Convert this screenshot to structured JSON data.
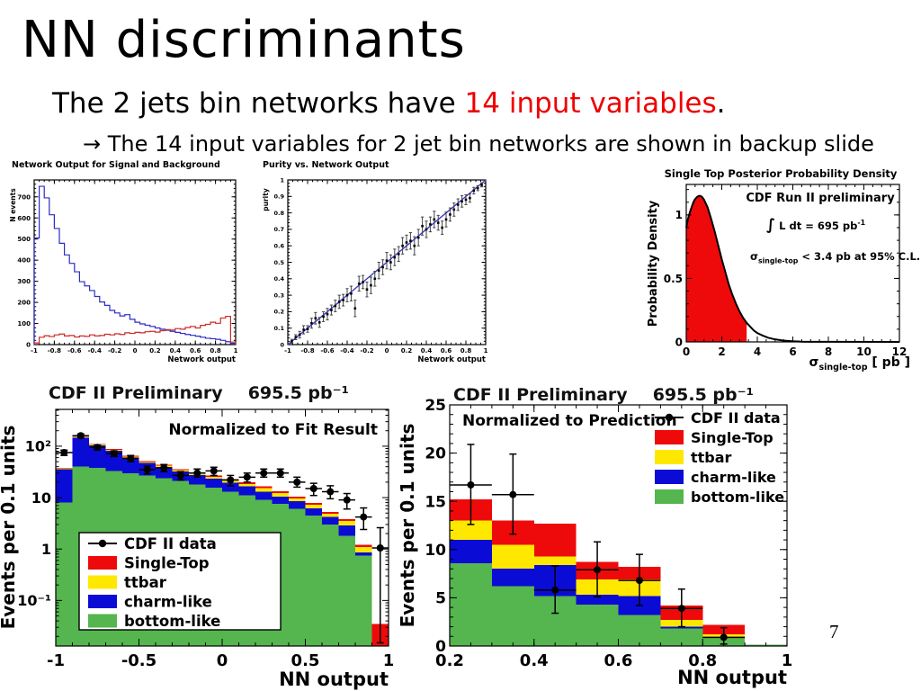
{
  "slide": {
    "title": "NN discriminants",
    "intro": {
      "prefix": "The 2 jets bin networks have ",
      "highlight": "14 input variables",
      "suffix": "."
    },
    "subline": "→ The 14 input variables for 2 jet bin networks are shown in backup slide",
    "page_number": "7"
  },
  "colors": {
    "signal_red": "#cc2a2a",
    "background_blue": "#2c2cc8",
    "single_top_red": "#ee0a0a",
    "ttbar_yellow": "#ffe800",
    "charm_blue": "#0b0bd6",
    "bottom_green": "#55b54f",
    "diagonal_blue": "#3a3ad0",
    "highlight_red": "#ee0000"
  },
  "chart_data": [
    {
      "type": "line",
      "title": "Network Output for Signal and Background",
      "xlabel": "Network output",
      "ylabel": "N events",
      "xlim": [
        -1,
        1
      ],
      "ylim": [
        0,
        780
      ],
      "xticks": [
        -1,
        -0.8,
        -0.6,
        -0.4,
        -0.2,
        0,
        0.2,
        0.4,
        0.6,
        0.8,
        1
      ],
      "xtick_labels": [
        "-1",
        "-0.8",
        "-0.6",
        "-0.4",
        "-0.2",
        "0",
        "0.2",
        "0.4",
        "0.6",
        "0.8",
        "1"
      ],
      "yticks": [
        0,
        100,
        200,
        300,
        400,
        500,
        600,
        700
      ],
      "ytick_labels": [
        "0",
        "100",
        "200",
        "300",
        "400",
        "500",
        "600",
        "700"
      ],
      "x_start": -1,
      "bin_width": 0.05,
      "series": [
        {
          "name": "background",
          "color": "#2c2cc8",
          "values": [
            505,
            750,
            695,
            615,
            550,
            480,
            425,
            385,
            345,
            298,
            278,
            256,
            228,
            202,
            186,
            162,
            150,
            136,
            142,
            120,
            106,
            98,
            92,
            86,
            79,
            73,
            68,
            63,
            58,
            53,
            48,
            44,
            40,
            35,
            30,
            28,
            25,
            20,
            14,
            6
          ]
        },
        {
          "name": "signal",
          "color": "#cc2a2a",
          "values": [
            8,
            35,
            42,
            38,
            46,
            50,
            41,
            43,
            36,
            41,
            39,
            46,
            41,
            43,
            49,
            46,
            51,
            48,
            56,
            53,
            58,
            56,
            61,
            63,
            59,
            66,
            71,
            69,
            76,
            73,
            81,
            86,
            79,
            91,
            96,
            106,
            101,
            126,
            134,
            12
          ]
        }
      ]
    },
    {
      "type": "scatter",
      "title": "Purity vs. Network Output",
      "xlabel": "Network output",
      "ylabel": "purity",
      "xlim": [
        -1,
        1
      ],
      "ylim": [
        0,
        1
      ],
      "xticks": [
        -1,
        -0.8,
        -0.6,
        -0.4,
        -0.2,
        0,
        0.2,
        0.4,
        0.6,
        0.8,
        1
      ],
      "xtick_labels": [
        "-1",
        "-0.8",
        "-0.6",
        "-0.4",
        "-0.2",
        "0",
        "0.2",
        "0.4",
        "0.6",
        "0.8",
        "1"
      ],
      "yticks": [
        0,
        0.1,
        0.2,
        0.3,
        0.4,
        0.5,
        0.6,
        0.7,
        0.8,
        0.9,
        1
      ],
      "ytick_labels": [
        "0",
        "0.1",
        "0.2",
        "0.3",
        "0.4",
        "0.5",
        "0.6",
        "0.7",
        "0.8",
        "0.9",
        "1"
      ],
      "diagonal": {
        "from": [
          -1,
          0
        ],
        "to": [
          1,
          1
        ],
        "color": "#3a3ad0"
      },
      "points": [
        [
          -0.96,
          0.02,
          0.012
        ],
        [
          -0.92,
          0.045,
          0.015
        ],
        [
          -0.88,
          0.06,
          0.02
        ],
        [
          -0.84,
          0.09,
          0.025
        ],
        [
          -0.8,
          0.095,
          0.02
        ],
        [
          -0.76,
          0.13,
          0.03
        ],
        [
          -0.72,
          0.16,
          0.035
        ],
        [
          -0.68,
          0.135,
          0.03
        ],
        [
          -0.64,
          0.17,
          0.03
        ],
        [
          -0.6,
          0.185,
          0.035
        ],
        [
          -0.56,
          0.21,
          0.03
        ],
        [
          -0.52,
          0.235,
          0.035
        ],
        [
          -0.48,
          0.26,
          0.04
        ],
        [
          -0.44,
          0.27,
          0.035
        ],
        [
          -0.4,
          0.3,
          0.04
        ],
        [
          -0.36,
          0.31,
          0.045
        ],
        [
          -0.32,
          0.22,
          0.05
        ],
        [
          -0.28,
          0.37,
          0.045
        ],
        [
          -0.24,
          0.38,
          0.04
        ],
        [
          -0.2,
          0.335,
          0.045
        ],
        [
          -0.16,
          0.36,
          0.05
        ],
        [
          -0.12,
          0.4,
          0.045
        ],
        [
          -0.08,
          0.45,
          0.05
        ],
        [
          -0.04,
          0.47,
          0.045
        ],
        [
          0,
          0.51,
          0.05
        ],
        [
          0.04,
          0.5,
          0.045
        ],
        [
          0.08,
          0.53,
          0.05
        ],
        [
          0.12,
          0.55,
          0.045
        ],
        [
          0.16,
          0.6,
          0.05
        ],
        [
          0.2,
          0.62,
          0.045
        ],
        [
          0.24,
          0.63,
          0.05
        ],
        [
          0.28,
          0.6,
          0.055
        ],
        [
          0.32,
          0.65,
          0.05
        ],
        [
          0.36,
          0.72,
          0.055
        ],
        [
          0.4,
          0.7,
          0.05
        ],
        [
          0.44,
          0.73,
          0.045
        ],
        [
          0.48,
          0.76,
          0.05
        ],
        [
          0.52,
          0.74,
          0.045
        ],
        [
          0.56,
          0.71,
          0.04
        ],
        [
          0.6,
          0.76,
          0.045
        ],
        [
          0.64,
          0.79,
          0.04
        ],
        [
          0.68,
          0.82,
          0.04
        ],
        [
          0.72,
          0.85,
          0.035
        ],
        [
          0.76,
          0.87,
          0.035
        ],
        [
          0.8,
          0.88,
          0.03
        ],
        [
          0.84,
          0.89,
          0.025
        ],
        [
          0.88,
          0.935,
          0.02
        ],
        [
          0.92,
          0.95,
          0.015
        ],
        [
          0.96,
          0.97,
          0.012
        ]
      ]
    },
    {
      "type": "area",
      "title": "Single Top  Posterior Probability Density",
      "ylabel": "Probability Density",
      "xlabel_parts": [
        {
          "t": "σ"
        },
        {
          "t": "single-top",
          "sub": true
        },
        {
          "t": " [ pb ]"
        }
      ],
      "xlim": [
        0,
        12
      ],
      "ylim": [
        0,
        1.24
      ],
      "xticks": [
        0,
        2,
        4,
        6,
        8,
        10,
        12
      ],
      "xtick_labels": [
        "0",
        "2",
        "4",
        "6",
        "8",
        "10",
        "12"
      ],
      "yticks": [
        0,
        0.5,
        1
      ],
      "ytick_labels": [
        "0",
        "0.5",
        "1"
      ],
      "fill_color": "#ee0a0a",
      "shade_upto": 3.4,
      "curve": [
        [
          0,
          0.9
        ],
        [
          0.1,
          0.97
        ],
        [
          0.2,
          1.02
        ],
        [
          0.3,
          1.06
        ],
        [
          0.4,
          1.1
        ],
        [
          0.5,
          1.125
        ],
        [
          0.6,
          1.14
        ],
        [
          0.7,
          1.15
        ],
        [
          0.8,
          1.15
        ],
        [
          0.9,
          1.14
        ],
        [
          1,
          1.12
        ],
        [
          1.2,
          1.06
        ],
        [
          1.4,
          0.97
        ],
        [
          1.6,
          0.87
        ],
        [
          1.8,
          0.76
        ],
        [
          2,
          0.65
        ],
        [
          2.2,
          0.55
        ],
        [
          2.4,
          0.45
        ],
        [
          2.6,
          0.37
        ],
        [
          2.8,
          0.3
        ],
        [
          3,
          0.24
        ],
        [
          3.2,
          0.19
        ],
        [
          3.4,
          0.15
        ],
        [
          3.6,
          0.12
        ],
        [
          3.8,
          0.09
        ],
        [
          4,
          0.07
        ],
        [
          4.3,
          0.05
        ],
        [
          4.6,
          0.033
        ],
        [
          5,
          0.02
        ],
        [
          5.5,
          0.01
        ],
        [
          6,
          0.005
        ],
        [
          6.5,
          0.002
        ],
        [
          7,
          0.001
        ],
        [
          8,
          0.0005
        ],
        [
          12,
          0.0003
        ]
      ],
      "annotations": [
        {
          "text": "CDF Run II preliminary"
        },
        {
          "parts": [
            {
              "t": "∫",
              "big": true
            },
            {
              "t": " L dt = 695 pb"
            },
            {
              "t": "-1",
              "sup": true
            }
          ]
        },
        {
          "parts": [
            {
              "t": "σ"
            },
            {
              "t": "single-top",
              "sub": true
            },
            {
              "t": " < 3.4 pb at 95% C.L."
            }
          ]
        }
      ]
    },
    {
      "type": "stacked_log",
      "header": "CDF II Preliminary",
      "lumi": "695.5 pb⁻¹",
      "annotation": "Normalized to Fit Result",
      "xlabel": "NN output",
      "ylabel": "Events per 0.1 units",
      "xlim": [
        -1,
        1
      ],
      "ylim_log": [
        0.013,
        520
      ],
      "xticks": [
        -1,
        -0.5,
        0,
        0.5,
        1
      ],
      "xtick_labels": [
        "-1",
        "-0.5",
        "0",
        "0.5",
        "1"
      ],
      "yticks": [
        {
          "v": 100,
          "label": "10²"
        },
        {
          "v": 10,
          "label": "10"
        },
        {
          "v": 1,
          "label": "1"
        },
        {
          "v": 0.1,
          "label": "10⁻¹"
        }
      ],
      "x_start": -1,
      "bin_width": 0.1,
      "stack": [
        {
          "name": "bottom-like",
          "color": "#55b54f",
          "values": [
            8,
            40,
            38,
            33,
            30,
            27,
            24,
            21,
            18,
            15.5,
            13,
            11,
            9,
            7.5,
            6,
            4.5,
            3,
            1.8,
            0.75,
            0
          ]
        },
        {
          "name": "charm-like",
          "color": "#0b0bd6",
          "values": [
            28,
            105,
            66,
            49,
            30,
            20,
            15,
            11.5,
            9.5,
            8,
            6.5,
            5.5,
            4,
            3,
            2.5,
            1.7,
            1.2,
            1.1,
            0.1,
            0
          ]
        },
        {
          "name": "ttbar",
          "color": "#ffe800",
          "values": [
            1,
            3,
            4,
            3.5,
            3,
            2.5,
            2.5,
            2,
            2,
            2,
            2,
            2,
            2.2,
            1.8,
            1.1,
            1,
            0.7,
            0.6,
            0.25,
            0
          ]
        },
        {
          "name": "Single-Top",
          "color": "#ee0a0a",
          "values": [
            1,
            3,
            2,
            2,
            2,
            2,
            2,
            1.5,
            1.5,
            1.5,
            1.5,
            1.5,
            1.3,
            1.1,
            0.8,
            0.6,
            0.4,
            0.3,
            0.1,
            0.035
          ]
        }
      ],
      "data_points": [
        [
          -0.95,
          75,
          66,
          84
        ],
        [
          -0.85,
          160,
          147,
          173
        ],
        [
          -0.75,
          95,
          85,
          105
        ],
        [
          -0.65,
          72,
          63,
          81
        ],
        [
          -0.55,
          58,
          50,
          66
        ],
        [
          -0.45,
          35,
          29,
          41
        ],
        [
          -0.35,
          38,
          32,
          44
        ],
        [
          -0.25,
          27,
          22,
          32
        ],
        [
          -0.15,
          30,
          25,
          36
        ],
        [
          -0.05,
          33,
          27,
          39
        ],
        [
          0.05,
          22,
          17,
          27
        ],
        [
          0.15,
          25,
          20,
          30
        ],
        [
          0.25,
          30,
          25,
          36
        ],
        [
          0.35,
          30,
          25,
          36
        ],
        [
          0.45,
          20,
          16,
          25
        ],
        [
          0.55,
          15,
          11,
          19
        ],
        [
          0.65,
          13,
          9.5,
          17
        ],
        [
          0.75,
          9,
          6,
          12
        ],
        [
          0.85,
          4.2,
          2.4,
          6.3
        ],
        [
          0.95,
          1.05,
          0.015,
          2.6
        ]
      ],
      "legend": [
        {
          "label": "CDF II data",
          "marker": true
        },
        {
          "label": "Single-Top",
          "color": "#ee0a0a"
        },
        {
          "label": "ttbar",
          "color": "#ffe800"
        },
        {
          "label": "charm-like",
          "color": "#0b0bd6"
        },
        {
          "label": "bottom-like",
          "color": "#55b54f"
        }
      ]
    },
    {
      "type": "stacked_lin",
      "header": "CDF II Preliminary",
      "lumi": "695.5 pb⁻¹",
      "annotation": "Normalized to Prediction",
      "xlabel": "NN output",
      "ylabel": "Events per 0.1 units",
      "xlim": [
        0.2,
        1
      ],
      "ylim": [
        0,
        25
      ],
      "xticks": [
        0.2,
        0.4,
        0.6,
        0.8,
        1
      ],
      "xtick_labels": [
        "0.2",
        "0.4",
        "0.6",
        "0.8",
        "1"
      ],
      "yticks": [
        0,
        5,
        10,
        15,
        20,
        25
      ],
      "ytick_labels": [
        "0",
        "5",
        "10",
        "15",
        "20",
        "25"
      ],
      "x_start": 0.2,
      "bin_width": 0.1,
      "stack": [
        {
          "name": "bottom-like",
          "color": "#55b54f",
          "values": [
            8.6,
            6.2,
            5.2,
            4.3,
            3.2,
            1.8,
            0.9,
            0.15
          ]
        },
        {
          "name": "charm-like",
          "color": "#0b0bd6",
          "values": [
            2.4,
            1.8,
            3.2,
            1,
            2,
            0.2,
            0.05,
            0
          ]
        },
        {
          "name": "ttbar",
          "color": "#ffe800",
          "values": [
            2,
            2.5,
            0.9,
            1.6,
            1.7,
            0.7,
            0.25,
            0
          ]
        },
        {
          "name": "Single-Top",
          "color": "#ee0a0a",
          "values": [
            2.2,
            2.5,
            3.4,
            1.8,
            1.3,
            1.5,
            1,
            0
          ]
        }
      ],
      "data_points": [
        [
          0.25,
          16.7,
          12.6,
          20.9
        ],
        [
          0.35,
          15.7,
          11.6,
          19.9
        ],
        [
          0.45,
          5.8,
          3.4,
          8.3
        ],
        [
          0.55,
          7.9,
          5.1,
          10.8
        ],
        [
          0.65,
          6.8,
          4.2,
          9.5
        ],
        [
          0.75,
          3.9,
          2,
          5.9
        ],
        [
          0.85,
          0.9,
          0.2,
          1.9
        ]
      ],
      "legend": [
        {
          "label": "CDF II data",
          "marker": true
        },
        {
          "label": "Single-Top",
          "color": "#ee0a0a"
        },
        {
          "label": "ttbar",
          "color": "#ffe800"
        },
        {
          "label": "charm-like",
          "color": "#0b0bd6"
        },
        {
          "label": "bottom-like",
          "color": "#55b54f"
        }
      ]
    }
  ]
}
